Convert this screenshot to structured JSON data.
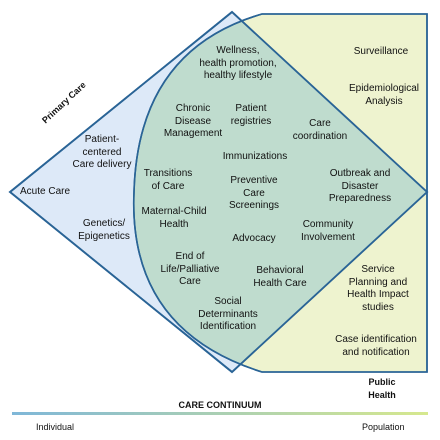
{
  "diagram": {
    "primary_care_label": "Primary Care",
    "public_health_label": "Public\nHealth",
    "left_items": {
      "acute_care": "Acute Care",
      "patient_centered": "Patient-\ncentered\nCare delivery",
      "genetics": "Genetics/\nEpigenetics"
    },
    "overlap_items": {
      "wellness": "Wellness,\nhealth promotion,\nhealthy lifestyle",
      "chronic": "Chronic\nDisease\nManagement",
      "registries": "Patient\nregistries",
      "coordination": "Care\ncoordination",
      "immunizations": "Immunizations",
      "transitions": "Transitions\nof Care",
      "preventive": "Preventive\nCare\nScreenings",
      "outbreak": "Outbreak and\nDisaster\nPreparedness",
      "maternal": "Maternal-Child\nHealth",
      "advocacy": "Advocacy",
      "community": "Community\nInvolvement",
      "end_of_life": "End of\nLife/Palliative\nCare",
      "behavioral": "Behavioral\nHealth Care",
      "social": "Social\nDeterminants\nIdentification"
    },
    "right_items": {
      "surveillance": "Surveillance",
      "epidemiological": "Epidemiological\nAnalysis",
      "service_planning": "Service\nPlanning and\nHealth Impact\nstudies",
      "case_identification": "Case identification\nand notification"
    },
    "continuum": {
      "title": "CARE CONTINUUM",
      "left_end": "Individual",
      "right_end": "Population"
    },
    "colors": {
      "primary_fill": "#dde9f8",
      "public_fill": "#eef3cf",
      "overlap_fill": "#bfdcce",
      "outline": "#2a6496"
    }
  }
}
